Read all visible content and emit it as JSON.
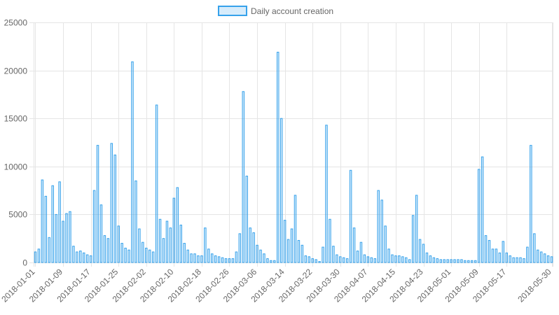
{
  "chart_data": {
    "type": "bar",
    "legend": {
      "label": "Daily account creation",
      "position": "top-center"
    },
    "colors": {
      "fill": "rgba(54,162,235,0.2)",
      "stroke": "#36a2eb"
    },
    "grid": true,
    "ylim": [
      0,
      25000
    ],
    "y_ticks": [
      "0",
      "5000",
      "10000",
      "15000",
      "20000",
      "25000"
    ],
    "x_tick_labels": [
      "2018-01-01",
      "2018-01-09",
      "2018-01-17",
      "2018-01-25",
      "2018-02-02",
      "2018-02-10",
      "2018-02-18",
      "2018-02-26",
      "2018-03-06",
      "2018-03-14",
      "2018-03-22",
      "2018-03-30",
      "2018-04-07",
      "2018-04-15",
      "2018-04-23",
      "2018-05-01",
      "2018-05-09",
      "2018-05-17",
      "2018-05-30"
    ],
    "start_date": "2018-01-01",
    "values": [
      1100,
      1400,
      8600,
      6900,
      2600,
      8000,
      5000,
      8400,
      4300,
      5100,
      5300,
      1700,
      1100,
      1200,
      1000,
      800,
      700,
      7500,
      12200,
      6000,
      2800,
      2500,
      12400,
      11200,
      3800,
      2000,
      1500,
      1300,
      20900,
      8500,
      3500,
      2100,
      1500,
      1300,
      1100,
      16400,
      4500,
      2500,
      4300,
      3600,
      6700,
      7800,
      3900,
      2000,
      1300,
      900,
      900,
      700,
      700,
      3600,
      1400,
      900,
      700,
      600,
      500,
      400,
      400,
      400,
      1100,
      3000,
      17800,
      9000,
      3600,
      3100,
      1800,
      1300,
      900,
      400,
      200,
      200,
      21900,
      15000,
      4400,
      2400,
      3500,
      7000,
      2300,
      1800,
      700,
      600,
      400,
      300,
      100,
      1600,
      14300,
      4500,
      1700,
      800,
      600,
      500,
      400,
      9600,
      3600,
      1200,
      2100,
      800,
      600,
      500,
      400,
      7500,
      6500,
      3800,
      1400,
      800,
      700,
      700,
      600,
      500,
      300,
      4900,
      7000,
      2400,
      1900,
      1000,
      700,
      500,
      400,
      300,
      300,
      300,
      300,
      300,
      300,
      300,
      200,
      200,
      200,
      200,
      9700,
      11000,
      2800,
      2300,
      1400,
      1400,
      1000,
      2200,
      1000,
      700,
      500,
      500,
      500,
      400,
      1600,
      12200,
      3000,
      1300,
      1100,
      900,
      700,
      600
    ]
  }
}
